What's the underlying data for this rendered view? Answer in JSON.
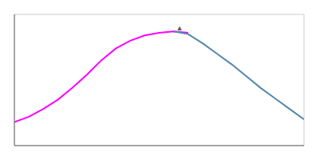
{
  "chart_data": {
    "type": "line",
    "series": [
      {
        "color": "#ff00ff",
        "x": [
          0,
          5,
          10,
          15,
          20,
          25,
          30,
          35,
          40,
          45,
          50,
          55,
          60
        ],
        "values": [
          0.18,
          0.22,
          0.28,
          0.35,
          0.44,
          0.54,
          0.65,
          0.74,
          0.8,
          0.84,
          0.86,
          0.87,
          0.86
        ]
      },
      {
        "color": "#5588aa",
        "x": [
          55,
          60,
          65,
          70,
          75,
          80,
          85,
          90,
          95,
          100
        ],
        "values": [
          0.87,
          0.85,
          0.78,
          0.7,
          0.62,
          0.53,
          0.44,
          0.36,
          0.28,
          0.2
        ]
      }
    ],
    "xlim": [
      0,
      100
    ],
    "ylim": [
      0,
      1
    ],
    "xticks": [
      0,
      10,
      20,
      30,
      40,
      50,
      60,
      70,
      80,
      90,
      100
    ],
    "yticks": [
      0,
      0.1,
      0.2,
      0.3,
      0.4,
      0.5,
      0.6,
      0.7,
      0.8,
      0.9,
      1.0
    ],
    "grid": true,
    "tick_labels": false,
    "annotations": [
      {
        "text": "▲",
        "x": 57,
        "y": 0.895
      }
    ]
  }
}
